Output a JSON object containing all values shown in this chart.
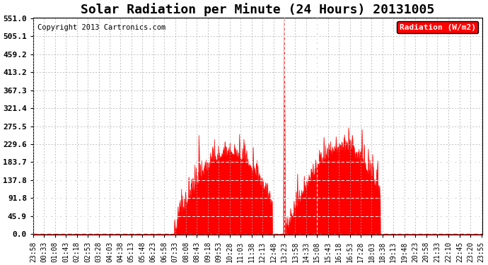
{
  "title": "Solar Radiation per Minute (24 Hours) 20131005",
  "copyright_text": "Copyright 2013 Cartronics.com",
  "legend_label": "Radiation (W/m2)",
  "yticks": [
    0.0,
    45.9,
    91.8,
    137.8,
    183.7,
    229.6,
    275.5,
    321.4,
    367.3,
    413.2,
    459.2,
    505.1,
    551.0
  ],
  "ymax": 551.0,
  "ymin": 0.0,
  "fill_color": "#FF0000",
  "line_color": "#FF0000",
  "dashed_hline_color": "#FFFFFF",
  "dashed_vline_color": "#FFFFFF",
  "grid_color": "#AAAAAA",
  "bg_color": "#FFFFFF",
  "plot_bg_color": "#FFFFFF",
  "title_fontsize": 13,
  "copyright_fontsize": 7.5,
  "tick_fontsize": 7,
  "ytick_fontsize": 8,
  "legend_fontsize": 8,
  "tick_labels": [
    "23:58",
    "00:33",
    "01:08",
    "01:43",
    "02:18",
    "02:53",
    "03:28",
    "04:03",
    "04:38",
    "05:13",
    "05:48",
    "06:23",
    "06:58",
    "07:33",
    "08:08",
    "08:43",
    "09:18",
    "09:53",
    "10:28",
    "11:03",
    "11:38",
    "12:13",
    "12:48",
    "13:23",
    "13:58",
    "14:33",
    "15:08",
    "15:43",
    "16:18",
    "16:53",
    "17:28",
    "18:03",
    "18:38",
    "19:13",
    "19:48",
    "20:23",
    "20:58",
    "21:33",
    "22:10",
    "22:45",
    "23:20",
    "23:55"
  ],
  "hlines": [
    45.9,
    91.8,
    137.8,
    183.7
  ],
  "vline_times": [
    "13:23",
    "15:08"
  ]
}
